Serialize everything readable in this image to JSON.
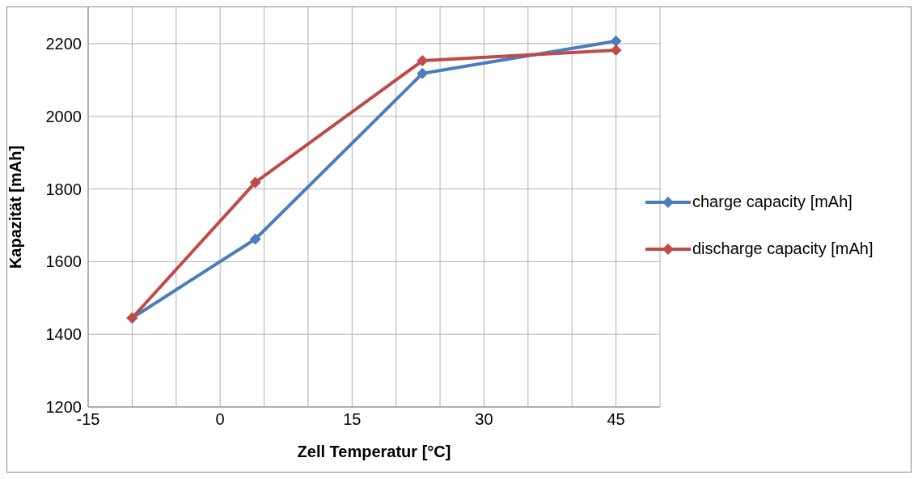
{
  "chart_data": {
    "type": "line",
    "xlabel": "Zell Temperatur [°C]",
    "ylabel": "Kapazität [mAh]",
    "x": [
      -10,
      4,
      23,
      45
    ],
    "series": [
      {
        "name": "charge capacity [mAh]",
        "color": "#4a7ebb",
        "values": [
          1445,
          1662,
          2118,
          2207
        ]
      },
      {
        "name": "discharge capacity [mAh]",
        "color": "#be4b48",
        "values": [
          1445,
          1818,
          2153,
          2182
        ]
      }
    ],
    "xlim": [
      -15,
      50
    ],
    "xticks": [
      -15,
      {
        "value": -10,
        "label": null
      },
      {
        "value": -5,
        "label": null
      },
      0,
      {
        "value": 5,
        "label": null
      },
      {
        "value": 10,
        "label": null
      },
      15,
      {
        "value": 20,
        "label": null
      },
      {
        "value": 25,
        "label": null
      },
      30,
      {
        "value": 35,
        "label": null
      },
      {
        "value": 40,
        "label": null
      },
      45,
      {
        "value": 50,
        "label": null
      }
    ],
    "ylim": [
      1200,
      2300
    ],
    "yticks": [
      1200,
      1400,
      1600,
      1800,
      2000,
      2200
    ],
    "grid": true,
    "legend": "right",
    "marker": "diamond",
    "line_style": "solid"
  }
}
